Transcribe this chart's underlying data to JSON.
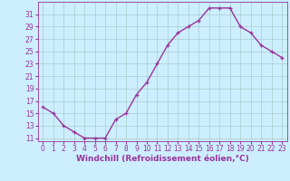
{
  "x": [
    0,
    1,
    2,
    3,
    4,
    5,
    6,
    7,
    8,
    9,
    10,
    11,
    12,
    13,
    14,
    15,
    16,
    17,
    18,
    19,
    20,
    21,
    22,
    23
  ],
  "y": [
    16,
    15,
    13,
    12,
    11,
    11,
    11,
    14,
    15,
    18,
    20,
    23,
    26,
    28,
    29,
    30,
    32,
    32,
    32,
    29,
    28,
    26,
    25,
    24
  ],
  "line_color": "#993399",
  "marker": "+",
  "bg_color": "#cceeff",
  "grid_color": "#aacccc",
  "xlabel": "Windchill (Refroidissement éolien,°C)",
  "yticks": [
    11,
    13,
    15,
    17,
    19,
    21,
    23,
    25,
    27,
    29,
    31
  ],
  "xticks": [
    0,
    1,
    2,
    3,
    4,
    5,
    6,
    7,
    8,
    9,
    10,
    11,
    12,
    13,
    14,
    15,
    16,
    17,
    18,
    19,
    20,
    21,
    22,
    23
  ],
  "ylim": [
    10.5,
    33
  ],
  "xlim": [
    -0.5,
    23.5
  ],
  "xlabel_color": "#993399",
  "tick_color": "#993399",
  "label_fontsize": 6.5,
  "tick_fontsize": 5.5,
  "line_width": 1.0,
  "marker_size": 3.5,
  "marker_edge_width": 0.9
}
